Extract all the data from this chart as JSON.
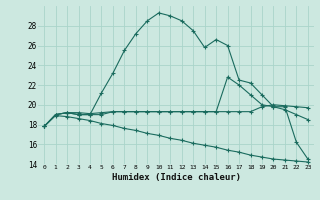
{
  "xlabel": "Humidex (Indice chaleur)",
  "bg_color": "#cce8e0",
  "line_color": "#1a6b5e",
  "grid_color": "#aad4ca",
  "ylim": [
    14,
    30
  ],
  "xlim": [
    -0.5,
    23.5
  ],
  "yticks": [
    14,
    16,
    18,
    20,
    22,
    24,
    26,
    28
  ],
  "xticks": [
    0,
    1,
    2,
    3,
    4,
    5,
    6,
    7,
    8,
    9,
    10,
    11,
    12,
    13,
    14,
    15,
    16,
    17,
    18,
    19,
    20,
    21,
    22,
    23
  ],
  "series1": [
    17.8,
    19.0,
    19.2,
    19.0,
    19.0,
    21.2,
    23.2,
    25.5,
    27.2,
    28.5,
    29.3,
    29.0,
    28.5,
    27.5,
    25.8,
    26.6,
    26.0,
    22.5,
    22.2,
    21.0,
    19.8,
    19.8,
    16.2,
    14.5
  ],
  "series2": [
    17.8,
    19.0,
    19.2,
    19.2,
    19.1,
    19.2,
    19.3,
    19.3,
    19.3,
    19.3,
    19.3,
    19.3,
    19.3,
    19.3,
    19.3,
    19.3,
    19.3,
    19.3,
    19.3,
    19.8,
    20.0,
    19.9,
    19.8,
    19.7
  ],
  "series3": [
    17.8,
    19.0,
    19.2,
    19.0,
    19.0,
    19.0,
    19.3,
    19.3,
    19.3,
    19.3,
    19.3,
    19.3,
    19.3,
    19.3,
    19.3,
    19.3,
    22.8,
    22.0,
    21.0,
    20.0,
    19.8,
    19.5,
    19.0,
    18.5
  ],
  "series4": [
    17.8,
    18.9,
    18.8,
    18.6,
    18.4,
    18.1,
    17.9,
    17.6,
    17.4,
    17.1,
    16.9,
    16.6,
    16.4,
    16.1,
    15.9,
    15.7,
    15.4,
    15.2,
    14.9,
    14.7,
    14.5,
    14.4,
    14.3,
    14.2
  ]
}
